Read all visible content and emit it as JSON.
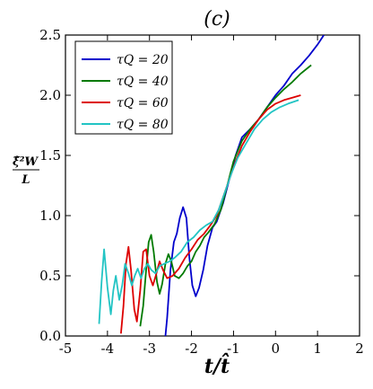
{
  "chart_data": {
    "type": "line",
    "title": "(c)",
    "xlabel": "t/t̂",
    "ylabel": {
      "numerator": "ξ̂²W",
      "denominator": "L"
    },
    "xlim": [
      -5,
      2
    ],
    "ylim": [
      0,
      2.5
    ],
    "x_ticks": [
      "-5",
      "-4",
      "-3",
      "-2",
      "-1",
      "0",
      "1",
      "2"
    ],
    "y_ticks": [
      "0.0",
      "0.5",
      "1.0",
      "1.5",
      "2.0",
      "2.5"
    ],
    "grid": false,
    "legend_position": "top-left",
    "series": [
      {
        "name": "τ_Q = 20",
        "label": "τQ = 20",
        "color": "#0000cc",
        "points": [
          [
            -2.62,
            0.0
          ],
          [
            -2.58,
            0.15
          ],
          [
            -2.5,
            0.55
          ],
          [
            -2.42,
            0.78
          ],
          [
            -2.35,
            0.85
          ],
          [
            -2.28,
            0.98
          ],
          [
            -2.2,
            1.07
          ],
          [
            -2.12,
            0.98
          ],
          [
            -2.05,
            0.65
          ],
          [
            -1.98,
            0.42
          ],
          [
            -1.9,
            0.33
          ],
          [
            -1.82,
            0.4
          ],
          [
            -1.72,
            0.55
          ],
          [
            -1.62,
            0.75
          ],
          [
            -1.5,
            0.9
          ],
          [
            -1.4,
            0.95
          ],
          [
            -1.25,
            1.1
          ],
          [
            -1.1,
            1.3
          ],
          [
            -0.95,
            1.5
          ],
          [
            -0.8,
            1.65
          ],
          [
            -0.6,
            1.72
          ],
          [
            -0.4,
            1.8
          ],
          [
            -0.2,
            1.9
          ],
          [
            0.0,
            2.0
          ],
          [
            0.2,
            2.08
          ],
          [
            0.4,
            2.18
          ],
          [
            0.6,
            2.25
          ],
          [
            0.8,
            2.33
          ],
          [
            1.0,
            2.42
          ],
          [
            1.15,
            2.5
          ]
        ]
      },
      {
        "name": "τ_Q = 40",
        "label": "τQ = 40",
        "color": "#007a00",
        "points": [
          [
            -3.22,
            0.08
          ],
          [
            -3.15,
            0.25
          ],
          [
            -3.08,
            0.55
          ],
          [
            -3.02,
            0.78
          ],
          [
            -2.96,
            0.84
          ],
          [
            -2.9,
            0.7
          ],
          [
            -2.82,
            0.45
          ],
          [
            -2.76,
            0.35
          ],
          [
            -2.7,
            0.43
          ],
          [
            -2.62,
            0.6
          ],
          [
            -2.55,
            0.68
          ],
          [
            -2.48,
            0.62
          ],
          [
            -2.4,
            0.5
          ],
          [
            -2.3,
            0.48
          ],
          [
            -2.2,
            0.52
          ],
          [
            -2.1,
            0.58
          ],
          [
            -2.0,
            0.62
          ],
          [
            -1.9,
            0.7
          ],
          [
            -1.8,
            0.75
          ],
          [
            -1.7,
            0.82
          ],
          [
            -1.6,
            0.86
          ],
          [
            -1.45,
            0.93
          ],
          [
            -1.3,
            1.05
          ],
          [
            -1.15,
            1.25
          ],
          [
            -1.0,
            1.45
          ],
          [
            -0.8,
            1.62
          ],
          [
            -0.6,
            1.72
          ],
          [
            -0.4,
            1.8
          ],
          [
            -0.2,
            1.9
          ],
          [
            0.0,
            1.98
          ],
          [
            0.2,
            2.05
          ],
          [
            0.4,
            2.11
          ],
          [
            0.6,
            2.18
          ],
          [
            0.85,
            2.25
          ]
        ]
      },
      {
        "name": "τ_Q = 60",
        "label": "τQ = 60",
        "color": "#dd0000",
        "points": [
          [
            -3.68,
            0.02
          ],
          [
            -3.62,
            0.25
          ],
          [
            -3.56,
            0.6
          ],
          [
            -3.5,
            0.74
          ],
          [
            -3.44,
            0.55
          ],
          [
            -3.36,
            0.22
          ],
          [
            -3.3,
            0.12
          ],
          [
            -3.22,
            0.38
          ],
          [
            -3.15,
            0.7
          ],
          [
            -3.08,
            0.72
          ],
          [
            -3.0,
            0.5
          ],
          [
            -2.92,
            0.42
          ],
          [
            -2.85,
            0.5
          ],
          [
            -2.76,
            0.62
          ],
          [
            -2.68,
            0.55
          ],
          [
            -2.58,
            0.48
          ],
          [
            -2.45,
            0.5
          ],
          [
            -2.3,
            0.56
          ],
          [
            -2.15,
            0.65
          ],
          [
            -2.0,
            0.72
          ],
          [
            -1.85,
            0.8
          ],
          [
            -1.7,
            0.85
          ],
          [
            -1.55,
            0.92
          ],
          [
            -1.4,
            1.0
          ],
          [
            -1.25,
            1.15
          ],
          [
            -1.1,
            1.3
          ],
          [
            -0.95,
            1.45
          ],
          [
            -0.8,
            1.58
          ],
          [
            -0.6,
            1.7
          ],
          [
            -0.4,
            1.8
          ],
          [
            -0.2,
            1.88
          ],
          [
            0.0,
            1.93
          ],
          [
            0.2,
            1.96
          ],
          [
            0.4,
            1.98
          ],
          [
            0.6,
            2.0
          ]
        ]
      },
      {
        "name": "τ_Q = 80",
        "label": "τQ = 80",
        "color": "#22c4c4",
        "points": [
          [
            -4.2,
            0.1
          ],
          [
            -4.14,
            0.45
          ],
          [
            -4.08,
            0.72
          ],
          [
            -4.0,
            0.4
          ],
          [
            -3.92,
            0.18
          ],
          [
            -3.86,
            0.38
          ],
          [
            -3.8,
            0.5
          ],
          [
            -3.72,
            0.3
          ],
          [
            -3.65,
            0.42
          ],
          [
            -3.58,
            0.6
          ],
          [
            -3.5,
            0.52
          ],
          [
            -3.42,
            0.42
          ],
          [
            -3.35,
            0.5
          ],
          [
            -3.28,
            0.56
          ],
          [
            -3.2,
            0.48
          ],
          [
            -3.12,
            0.56
          ],
          [
            -3.04,
            0.6
          ],
          [
            -2.96,
            0.55
          ],
          [
            -2.86,
            0.52
          ],
          [
            -2.76,
            0.58
          ],
          [
            -2.65,
            0.6
          ],
          [
            -2.52,
            0.62
          ],
          [
            -2.4,
            0.65
          ],
          [
            -2.25,
            0.7
          ],
          [
            -2.1,
            0.78
          ],
          [
            -1.95,
            0.82
          ],
          [
            -1.8,
            0.88
          ],
          [
            -1.65,
            0.92
          ],
          [
            -1.5,
            0.95
          ],
          [
            -1.35,
            1.05
          ],
          [
            -1.2,
            1.2
          ],
          [
            -1.05,
            1.35
          ],
          [
            -0.9,
            1.48
          ],
          [
            -0.7,
            1.6
          ],
          [
            -0.5,
            1.72
          ],
          [
            -0.3,
            1.8
          ],
          [
            -0.1,
            1.86
          ],
          [
            0.1,
            1.9
          ],
          [
            0.3,
            1.93
          ],
          [
            0.55,
            1.96
          ]
        ]
      }
    ]
  }
}
